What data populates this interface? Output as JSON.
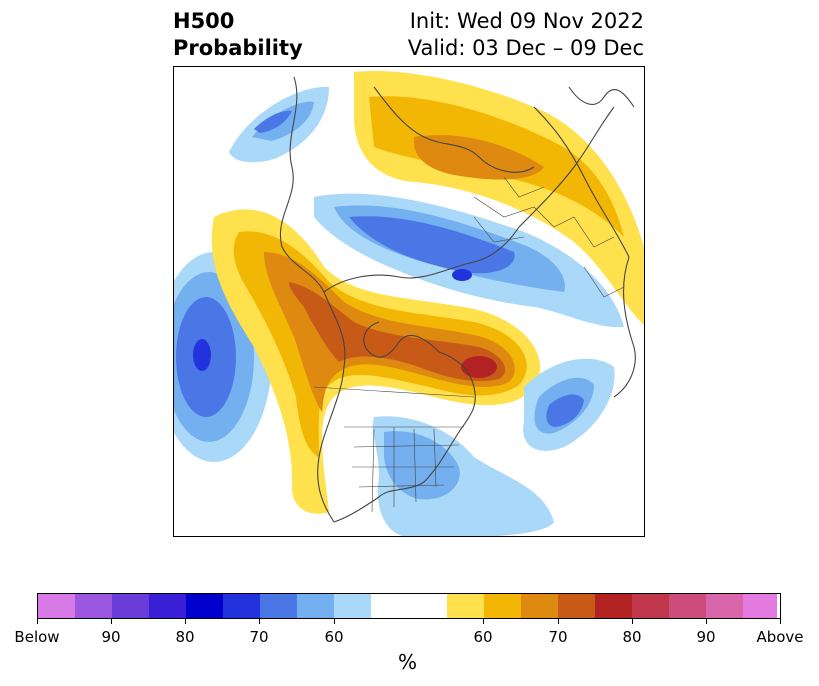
{
  "header": {
    "title_line1": "H500",
    "title_line2": "Probability",
    "init": "Init: Wed 09 Nov 2022",
    "valid": "Valid: 03 Dec – 09 Dec"
  },
  "colorbar": {
    "unit": "%",
    "labels": [
      "Below",
      "90",
      "80",
      "70",
      "60",
      "60",
      "70",
      "80",
      "90",
      "Above"
    ],
    "colors": [
      "#d87ae6",
      "#9b57e0",
      "#6a3ddb",
      "#3a1fd6",
      "#0000cc",
      "#2233dd",
      "#4b77e6",
      "#74b0f0",
      "#aad8f8",
      "#ffffff",
      "#ffe04d",
      "#f2b705",
      "#de8a10",
      "#c85a18",
      "#b22222",
      "#c0374c",
      "#cc4c7c",
      "#d966aa",
      "#e27ae0"
    ]
  },
  "map": {
    "land_color": "#ffffff",
    "border_color": "#444444"
  }
}
